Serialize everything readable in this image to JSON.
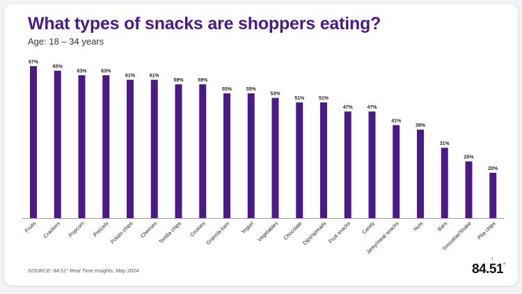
{
  "title": "What types of snacks are shoppers eating?",
  "subtitle": "Age: 18 – 34 years",
  "source": "SOURCE: 84.51° Real Time Insights, May 2024",
  "logo": {
    "text": "84.51",
    "degree": "°"
  },
  "chart_data": {
    "type": "bar",
    "categories": [
      "Fruits",
      "Crackers",
      "Popcorn",
      "Pretzels",
      "Potato chips",
      "Cheeses",
      "Tortilla chips",
      "Cookies",
      "Granola bars",
      "Yogurt",
      "Vegetables",
      "Chocolate",
      "Dips/spreads",
      "Fruit snacks",
      "Candy",
      "Jerky/meat snacks",
      "Nuts",
      "Bars",
      "Smoothie/Shake",
      "Pita chips"
    ],
    "values": [
      67,
      65,
      63,
      63,
      61,
      61,
      59,
      59,
      55,
      55,
      53,
      51,
      51,
      47,
      47,
      41,
      39,
      31,
      25,
      20
    ],
    "value_labels": [
      "67%",
      "65%",
      "63%",
      "63%",
      "61%",
      "61%",
      "59%",
      "59%",
      "55%",
      "55%",
      "53%",
      "51%",
      "51%",
      "47%",
      "47%",
      "41%",
      "39%",
      "31%",
      "25%",
      "20%"
    ],
    "ylim": [
      0,
      67
    ],
    "grid": false,
    "bar_color": "#4b1a86",
    "axis_color": "#9a9a9a"
  }
}
